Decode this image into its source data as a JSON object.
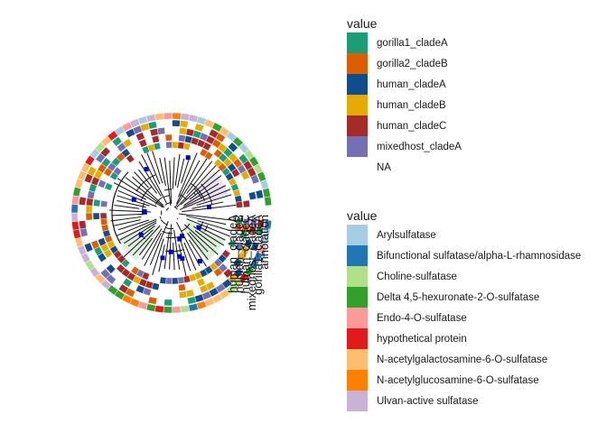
{
  "chart_data": {
    "type": "circular-phylogenetic-tree-heatmap",
    "legends": [
      {
        "title": "value",
        "entries": [
          {
            "label": "gorilla1_cladeA",
            "color": "#1B9E77"
          },
          {
            "label": "gorilla2_cladeB",
            "color": "#D95F02"
          },
          {
            "label": "human_cladeA",
            "color": "#114D8C"
          },
          {
            "label": "human_cladeB",
            "color": "#E6AB02"
          },
          {
            "label": "human_cladeC",
            "color": "#A52A2A"
          },
          {
            "label": "mixedhost_cladeA",
            "color": "#7570B3"
          },
          {
            "label": "NA",
            "color": "#FFFFFF"
          }
        ]
      },
      {
        "title": "value",
        "entries": [
          {
            "label": "Arylsulfatase",
            "color": "#A6CEE3"
          },
          {
            "label": "Bifunctional sulfatase/alpha-L-rhamnosidase",
            "color": "#1F78B4"
          },
          {
            "label": "Choline-sulfatase",
            "color": "#B2DF8A"
          },
          {
            "label": "Delta 4,5-hexuronate-2-O-sulfatase",
            "color": "#33A02C"
          },
          {
            "label": "Endo-4-O-sulfatase",
            "color": "#FB9A99"
          },
          {
            "label": "hypothetical protein",
            "color": "#E31A1C"
          },
          {
            "label": "N-acetylgalactosamine-6-O-sulfatase",
            "color": "#FDBF6F"
          },
          {
            "label": "N-acetylglucosamine-6-O-sulfatase",
            "color": "#FF7F00"
          },
          {
            "label": "Ulvan-active sulfatase",
            "color": "#CAB2D6"
          }
        ]
      }
    ],
    "ring_column_labels": [
      "human_cladeA",
      "human_cladeB",
      "human_cladeC",
      "mixedhost_cladeA",
      "gorilla1_cladeA",
      "annotation"
    ]
  }
}
